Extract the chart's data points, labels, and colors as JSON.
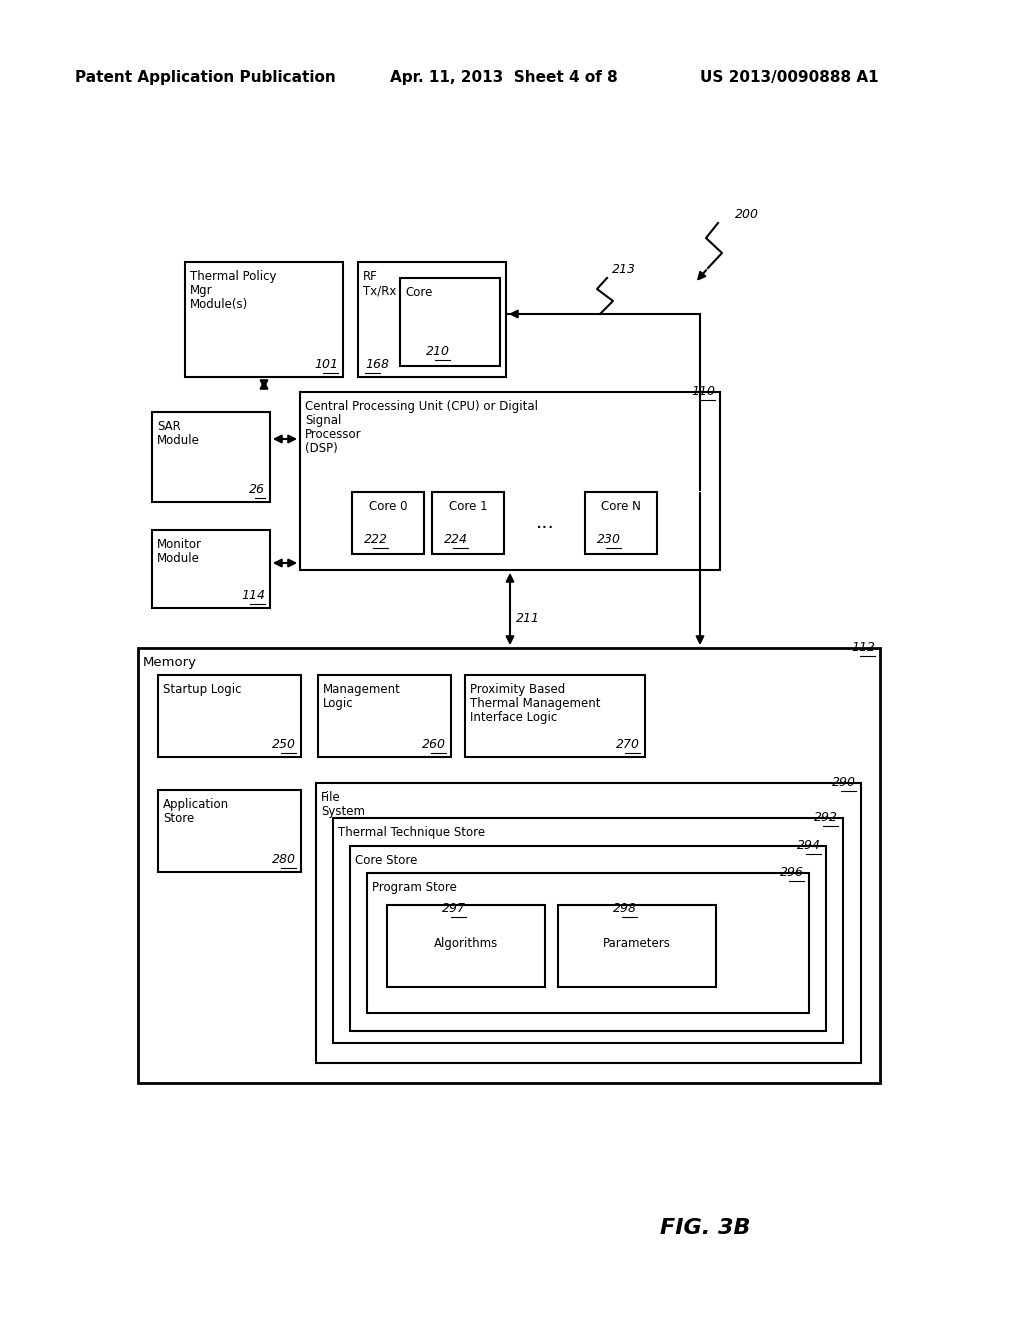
{
  "bg_color": "#ffffff",
  "text_color": "#000000",
  "header_left": "Patent Application Publication",
  "header_mid": "Apr. 11, 2013  Sheet 4 of 8",
  "header_right": "US 2013/0090888 A1",
  "fig_label": "FIG. 3B",
  "ref_200": "200",
  "ref_213": "213",
  "ref_211": "211",
  "ref_110": "110",
  "ref_101": "101",
  "ref_168": "168",
  "ref_210": "210",
  "ref_26": "26",
  "ref_114": "114",
  "ref_112": "112",
  "ref_250": "250",
  "ref_260": "260",
  "ref_270": "270",
  "ref_280": "280",
  "ref_290": "290",
  "ref_292": "292",
  "ref_294": "294",
  "ref_296": "296",
  "ref_297": "297",
  "ref_298": "298",
  "ref_222": "222",
  "ref_224": "224",
  "ref_230": "230"
}
